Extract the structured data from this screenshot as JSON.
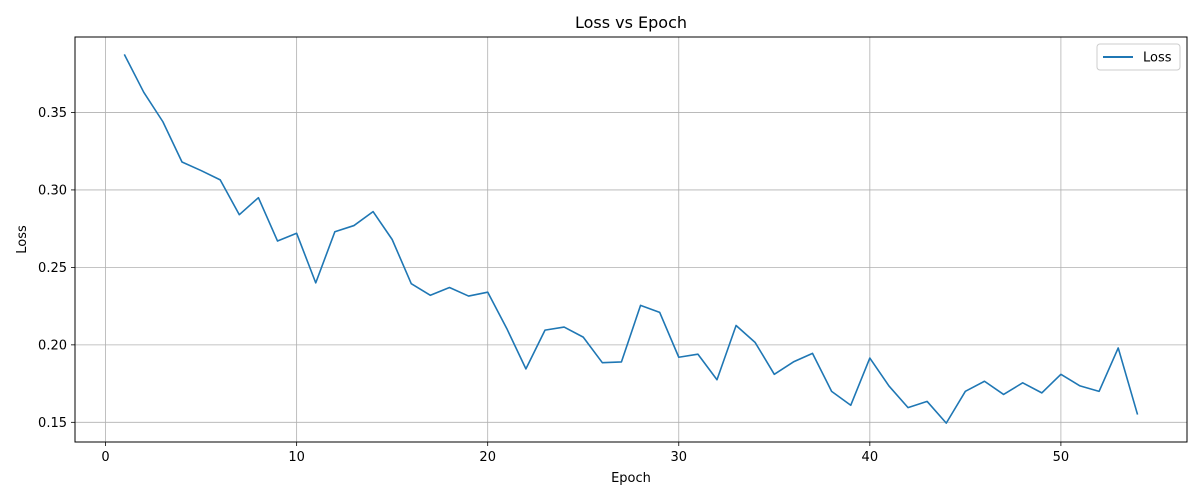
{
  "chart_data": {
    "type": "line",
    "title": "Loss vs Epoch",
    "xlabel": "Epoch",
    "ylabel": "Loss",
    "xlim": [
      -1.6,
      56.6
    ],
    "ylim": [
      0.1373,
      0.3987
    ],
    "xticks": [
      0,
      10,
      20,
      30,
      40,
      50
    ],
    "xtick_labels": [
      "0",
      "10",
      "20",
      "30",
      "40",
      "50"
    ],
    "yticks": [
      0.15,
      0.2,
      0.25,
      0.3,
      0.35
    ],
    "ytick_labels": [
      "0.15",
      "0.20",
      "0.25",
      "0.30",
      "0.35"
    ],
    "grid": true,
    "legend": {
      "position": "top-right",
      "entries": [
        "Loss"
      ]
    },
    "series": [
      {
        "name": "Loss",
        "color": "#1f77b4",
        "x": [
          1,
          2,
          3,
          4,
          5,
          6,
          7,
          8,
          9,
          10,
          11,
          12,
          13,
          14,
          15,
          16,
          17,
          18,
          19,
          20,
          21,
          22,
          23,
          24,
          25,
          26,
          27,
          28,
          29,
          30,
          31,
          32,
          33,
          34,
          35,
          36,
          37,
          38,
          39,
          40,
          41,
          42,
          43,
          44,
          45,
          46,
          47,
          48,
          49,
          50,
          51,
          52,
          53,
          54
        ],
        "y": [
          0.387,
          0.363,
          0.344,
          0.318,
          0.3125,
          0.3065,
          0.284,
          0.295,
          0.267,
          0.272,
          0.24,
          0.273,
          0.277,
          0.286,
          0.268,
          0.2395,
          0.232,
          0.237,
          0.2315,
          0.234,
          0.2105,
          0.1845,
          0.2095,
          0.2115,
          0.205,
          0.1885,
          0.189,
          0.2255,
          0.221,
          0.192,
          0.194,
          0.1775,
          0.2125,
          0.2015,
          0.181,
          0.189,
          0.1945,
          0.17,
          0.161,
          0.1915,
          0.1735,
          0.1595,
          0.1635,
          0.1495,
          0.17,
          0.1765,
          0.168,
          0.1755,
          0.169,
          0.181,
          0.1735,
          0.17,
          0.198,
          0.1555
        ]
      }
    ]
  }
}
